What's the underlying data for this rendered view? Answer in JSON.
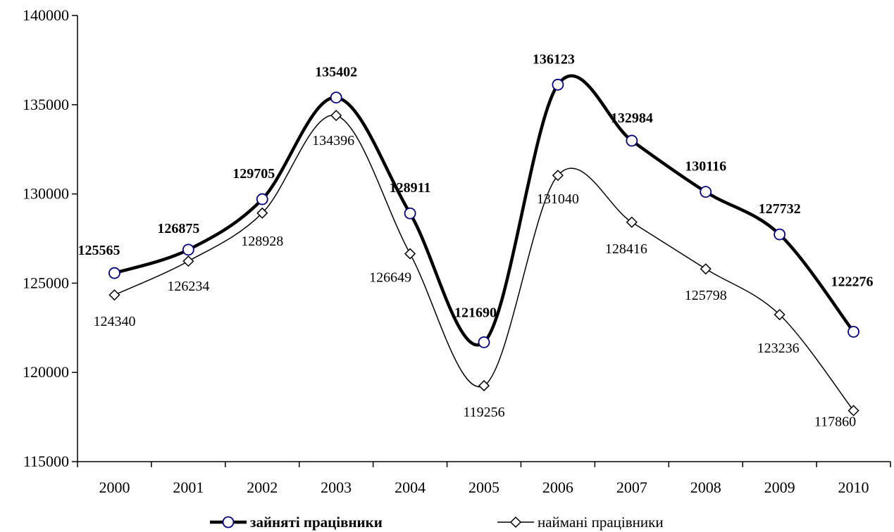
{
  "chart_data": {
    "type": "line",
    "title": "",
    "xlabel": "",
    "ylabel": "",
    "categories": [
      "2000",
      "2001",
      "2002",
      "2003",
      "2004",
      "2005",
      "2006",
      "2007",
      "2008",
      "2009",
      "2010"
    ],
    "ylim": [
      115000,
      140000
    ],
    "yticks": [
      115000,
      120000,
      125000,
      130000,
      135000,
      140000
    ],
    "grid": false,
    "smooth": true,
    "legend_position": "bottom",
    "series": [
      {
        "name": "зайняті працівники",
        "marker": "circle",
        "line_weight": "bold",
        "labels_bold": true,
        "color": "#000000",
        "marker_color": "#00007f",
        "values": [
          125565,
          126875,
          129705,
          135402,
          128911,
          121690,
          136123,
          132984,
          130116,
          127732,
          122276
        ]
      },
      {
        "name": "наймані працівники",
        "marker": "diamond",
        "line_weight": "thin",
        "labels_bold": false,
        "color": "#000000",
        "marker_color": "#000000",
        "values": [
          124340,
          126234,
          128928,
          134396,
          126649,
          119256,
          131040,
          128416,
          125798,
          123236,
          117860
        ]
      }
    ]
  }
}
